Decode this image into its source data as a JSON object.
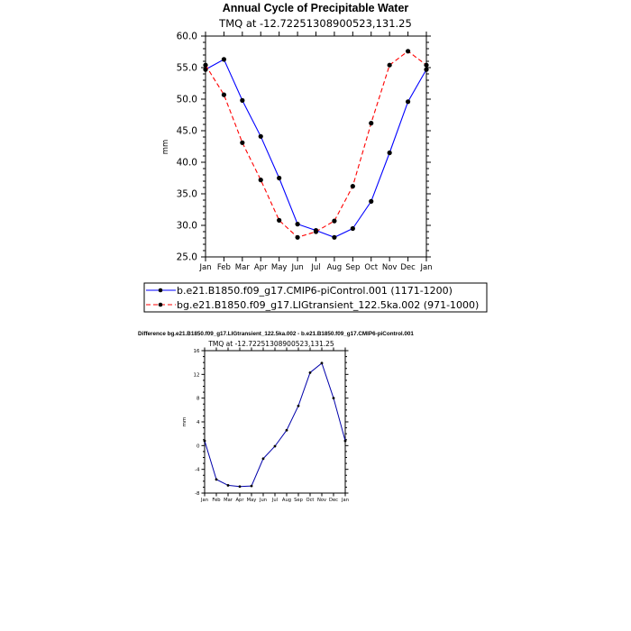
{
  "chart_data": [
    {
      "type": "line",
      "title": "Annual Cycle of Precipitable Water",
      "subtitle": "TMQ at -12.72251308900523,131.25",
      "xlabel": "",
      "ylabel": "mm",
      "categories": [
        "Jan",
        "Feb",
        "Mar",
        "Apr",
        "May",
        "Jun",
        "Jul",
        "Aug",
        "Sep",
        "Oct",
        "Nov",
        "Dec",
        "Jan"
      ],
      "ylim": [
        25,
        60
      ],
      "yticks": [
        "25.0",
        "30.0",
        "35.0",
        "40.0",
        "45.0",
        "50.0",
        "55.0",
        "60.0"
      ],
      "grid": false,
      "legend_position": "bottom",
      "series": [
        {
          "name": "b.e21.B1850.f09_g17.CMIP6-piControl.001 (1171-1200)",
          "color": "#0000ff",
          "dash": "solid",
          "values": [
            54.7,
            56.3,
            49.8,
            44.1,
            37.5,
            30.2,
            29.2,
            28.1,
            29.5,
            33.8,
            41.5,
            49.6,
            54.7
          ]
        },
        {
          "name": "bg.e21.B1850.f09_g17.LIGtransient_122.5ka.002 (971-1000)",
          "color": "#ff0000",
          "dash": "dashed",
          "values": [
            55.4,
            50.7,
            43.1,
            37.2,
            30.8,
            28.1,
            29.0,
            30.7,
            36.2,
            46.2,
            55.4,
            57.6,
            55.4
          ]
        }
      ]
    },
    {
      "type": "line",
      "title": "Difference bg.e21.B1850.f09_g17.LIGtransient_122.5ka.002 - b.e21.B1850.f09_g17.CMIP6-piControl.001",
      "subtitle": "TMQ at -12.72251308900523,131.25",
      "xlabel": "",
      "ylabel": "mm",
      "categories": [
        "Jan",
        "Feb",
        "Mar",
        "Apr",
        "May",
        "Jun",
        "Jul",
        "Aug",
        "Sep",
        "Oct",
        "Nov",
        "Dec",
        "Jan"
      ],
      "ylim": [
        -8,
        16
      ],
      "yticks": [
        "-8",
        "-4",
        "0",
        "4",
        "8",
        "12",
        "16"
      ],
      "grid": false,
      "series": [
        {
          "color": "#0000aa",
          "values": [
            0.8,
            -5.7,
            -6.7,
            -6.9,
            -6.8,
            -2.2,
            -0.1,
            2.6,
            6.7,
            12.3,
            13.9,
            8.0,
            0.8
          ]
        }
      ]
    }
  ]
}
